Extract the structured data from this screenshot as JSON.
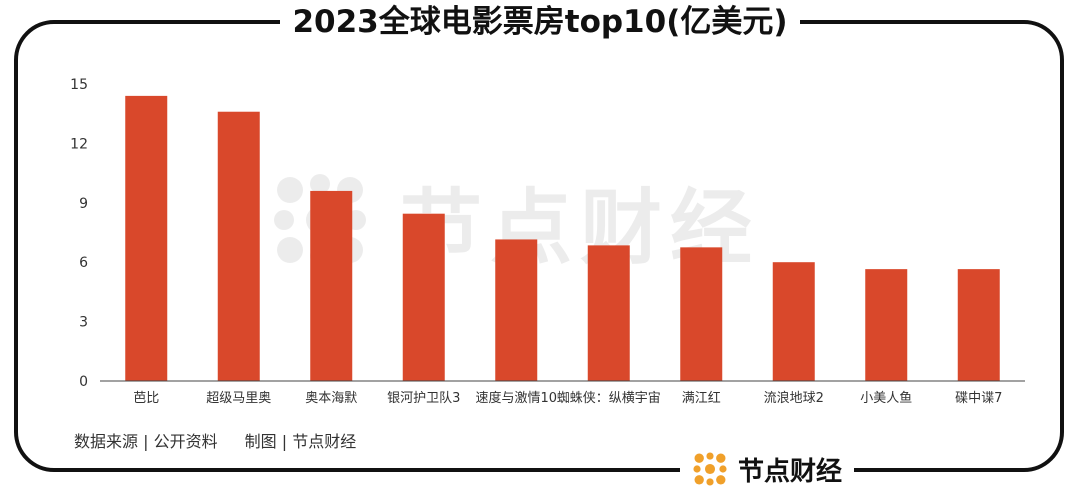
{
  "title": "2023全球电影票房top10(亿美元)",
  "source_text": "数据来源 | 公开资料",
  "credit_text": "制图 | 节点财经",
  "brand_name": "节点财经",
  "watermark_text": "节点财经",
  "colors": {
    "bar": "#d9482b",
    "brand_icon": "#f0a02a",
    "axis": "#444444"
  },
  "chart_data": {
    "type": "bar",
    "title": "2023全球电影票房top10(亿美元)",
    "xlabel": "",
    "ylabel": "",
    "categories": [
      "芭比",
      "超级马里奥",
      "奥本海默",
      "银河护卫队3",
      "速度与激情10",
      "蜘蛛侠：纵横宇宙",
      "满江红",
      "流浪地球2",
      "小美人鱼",
      "碟中谍7"
    ],
    "values": [
      14.4,
      13.6,
      9.6,
      8.45,
      7.15,
      6.85,
      6.75,
      6.0,
      5.65,
      5.65
    ],
    "ylim": [
      0,
      15
    ],
    "yticks": [
      0,
      3,
      6,
      9,
      12,
      15
    ],
    "grid": false,
    "legend": "none"
  }
}
